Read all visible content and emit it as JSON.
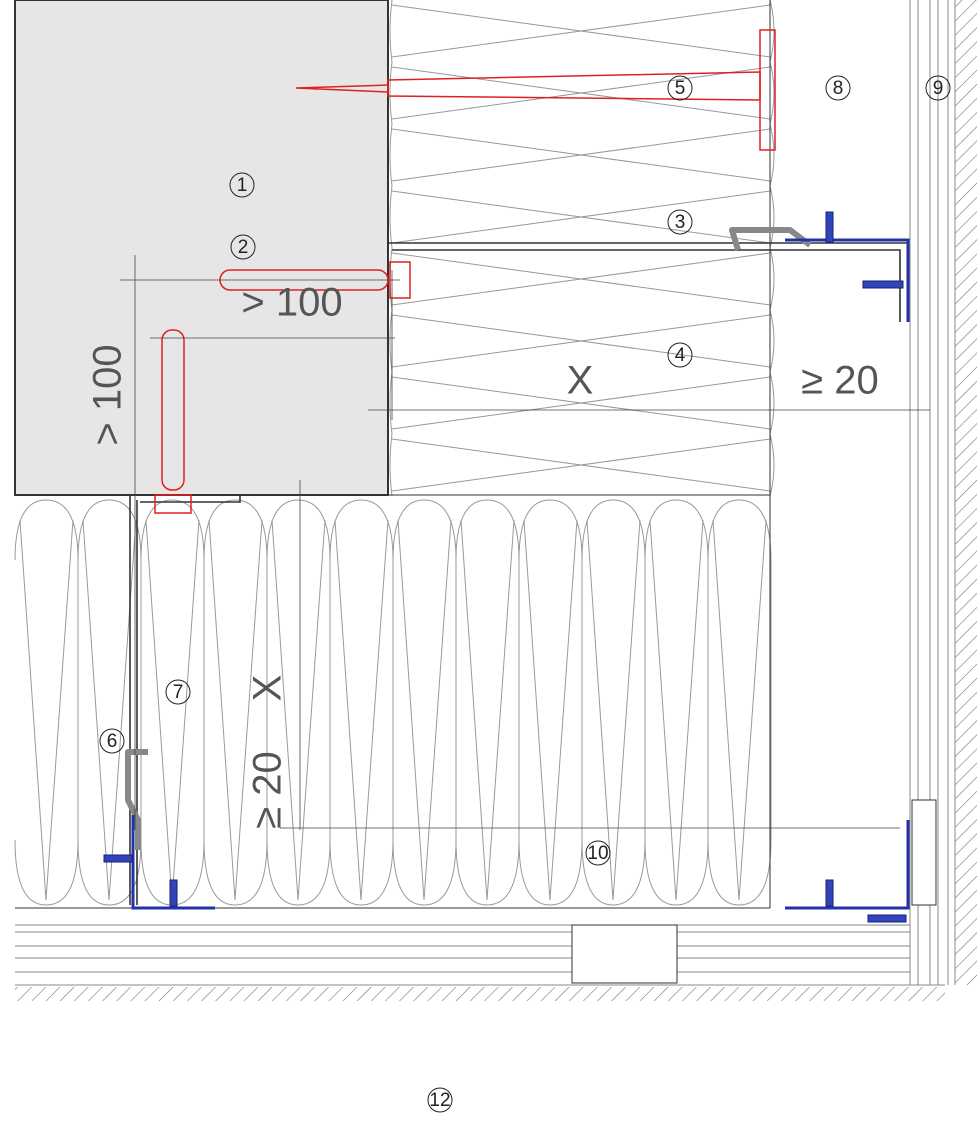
{
  "callouts": [
    "1",
    "2",
    "3",
    "4",
    "5",
    "6",
    "7",
    "8",
    "9",
    "10",
    "12"
  ],
  "dimensions": [
    "> 100",
    "> 100",
    "X",
    "X",
    "≥ 20",
    "≥ 20"
  ]
}
